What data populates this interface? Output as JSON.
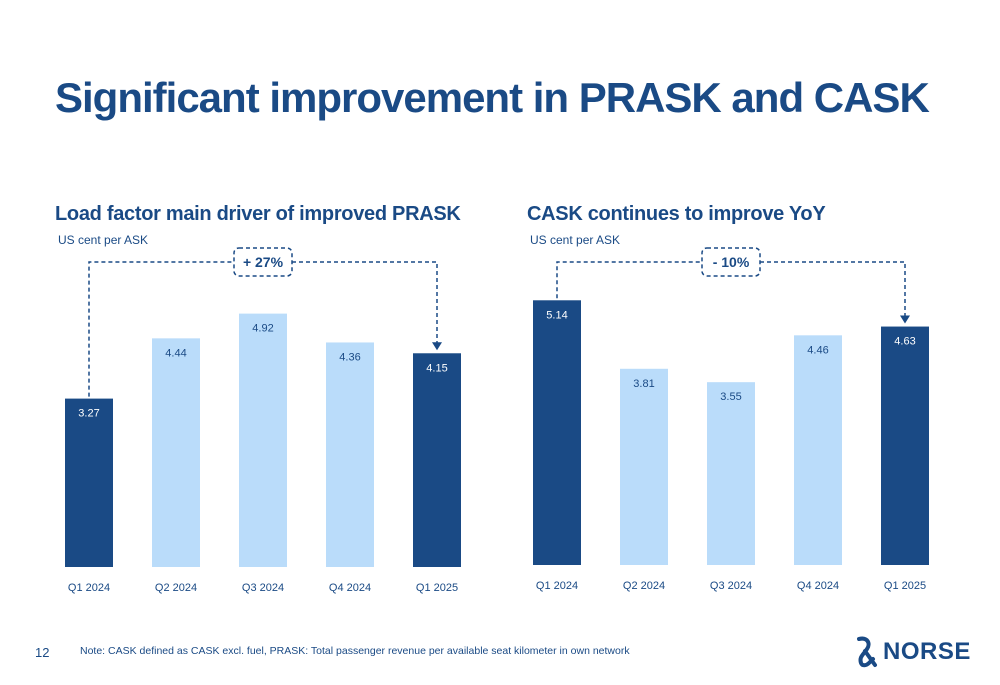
{
  "page": {
    "title": "Significant improvement in PRASK and CASK",
    "page_number": "12",
    "footnote": "Note: CASK defined as CASK excl. fuel, PRASK: Total passenger revenue per available seat kilometer in own network",
    "logo_text": "NORSE"
  },
  "colors": {
    "dark": "#1a4a85",
    "light": "#badcfa"
  },
  "chart_data": [
    {
      "type": "bar",
      "title": "Load factor main driver of improved PRASK",
      "ylabel": "US cent per ASK",
      "categories": [
        "Q1 2024",
        "Q2 2024",
        "Q3 2024",
        "Q4 2024",
        "Q1 2025"
      ],
      "values": [
        3.27,
        4.44,
        4.92,
        4.36,
        4.15
      ],
      "labels": [
        "3.27",
        "4.44",
        "4.92",
        "4.36",
        "4.15"
      ],
      "highlight": [
        true,
        false,
        false,
        false,
        true
      ],
      "annotation": {
        "text": "+ 27%",
        "from": 0,
        "to": 4
      },
      "ylim": [
        0,
        5.5
      ]
    },
    {
      "type": "bar",
      "title": "CASK continues to improve YoY",
      "ylabel": "US cent per ASK",
      "categories": [
        "Q1 2024",
        "Q2 2024",
        "Q3 2024",
        "Q4 2024",
        "Q1 2025"
      ],
      "values": [
        5.14,
        3.81,
        3.55,
        4.46,
        4.63
      ],
      "labels": [
        "5.14",
        "3.81",
        "3.55",
        "4.46",
        "4.63"
      ],
      "highlight": [
        true,
        false,
        false,
        false,
        true
      ],
      "annotation": {
        "text": "- 10%",
        "from": 0,
        "to": 4
      },
      "ylim": [
        0,
        5.5
      ]
    }
  ]
}
